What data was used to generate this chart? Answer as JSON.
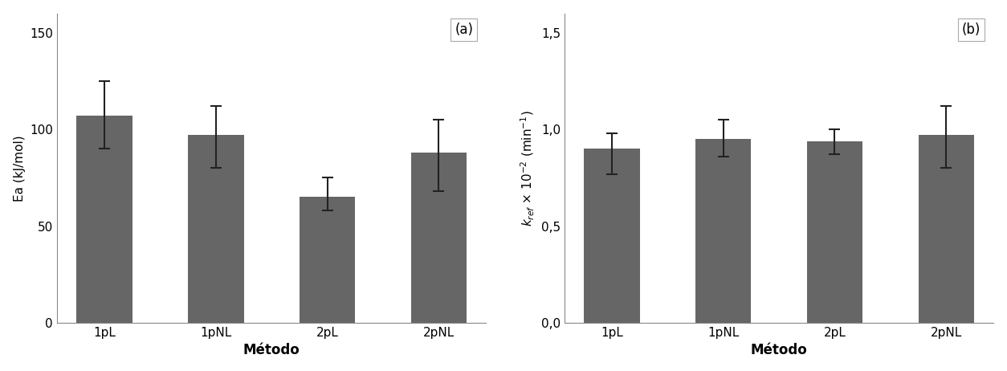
{
  "categories": [
    "1pL",
    "1pNL",
    "2pL",
    "2pNL"
  ],
  "bar_color": "#666666",
  "error_color": "#222222",
  "background_color": "#ffffff",
  "axes_facecolor": "#ffffff",
  "chart_a": {
    "values": [
      107,
      97,
      65,
      88
    ],
    "errors_lower": [
      17,
      17,
      7,
      20
    ],
    "errors_upper": [
      18,
      15,
      10,
      17
    ],
    "ylabel": "Ea (kJ/mol)",
    "ylim": [
      0,
      160
    ],
    "yticks": [
      0,
      50,
      100,
      150
    ],
    "ytick_labels": [
      "0",
      "50",
      "100",
      "150"
    ],
    "label": "(a)"
  },
  "chart_b": {
    "values": [
      0.9,
      0.95,
      0.94,
      0.97
    ],
    "errors_lower": [
      0.13,
      0.09,
      0.07,
      0.17
    ],
    "errors_upper": [
      0.08,
      0.1,
      0.06,
      0.15
    ],
    "ylabel_line1": "k",
    "ylabel": "k_ref x 10^-2 (min^-1)",
    "ylim": [
      0,
      1.6
    ],
    "yticks": [
      0.0,
      0.5,
      1.0,
      1.5
    ],
    "ytick_labels": [
      "0,0",
      "0,5",
      "1,0",
      "1,5"
    ],
    "label": "(b)"
  },
  "xlabel": "Método",
  "xlabel_fontsize": 12,
  "ylabel_fontsize": 11,
  "tick_fontsize": 11,
  "label_fontsize": 12,
  "bar_width": 0.5
}
